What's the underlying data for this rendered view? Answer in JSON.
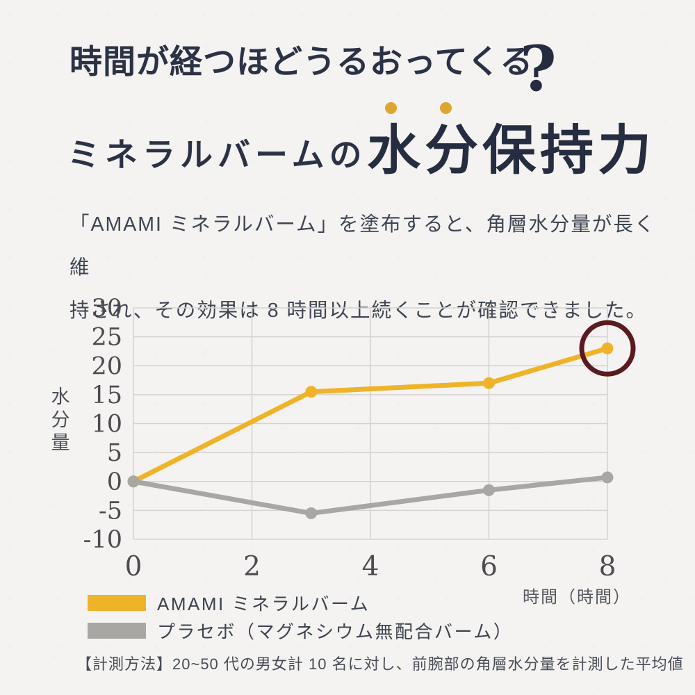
{
  "header": {
    "title": "時間が経つほどうるおってくる",
    "title_question_mark": "?",
    "subtitle_prefix": "ミネラルバームの",
    "subtitle_emphasis_chars": "水分",
    "subtitle_rest": "保持力",
    "subtitle_big": "水分保持力"
  },
  "description": {
    "line1": "「AMAMI ミネラルバーム」を塗布すると、角層水分量が長く維",
    "line2": "持され、その効果は 8 時間以上続くことが確認できました。"
  },
  "chart_data": {
    "type": "line",
    "x": [
      0,
      3,
      6,
      8
    ],
    "series": [
      {
        "name": "AMAMI ミネラルバーム",
        "color": "#efb32a",
        "values": [
          0,
          15.5,
          17,
          23
        ]
      },
      {
        "name": "プラセボ（マグネシウム無配合バーム）",
        "color": "#a9a7a4",
        "values": [
          0,
          -5.5,
          -1.5,
          0.7
        ]
      }
    ],
    "title": "ミネラルバームの水分保持力",
    "xlabel": "時間（時間）",
    "ylabel": "水分量",
    "x_ticks": [
      0,
      2,
      4,
      6,
      8
    ],
    "y_ticks": [
      30,
      25,
      20,
      15,
      10,
      5,
      0,
      -5,
      -10
    ],
    "xlim": [
      0,
      8
    ],
    "ylim": [
      -10,
      30
    ],
    "grid": true,
    "legend_position": "bottom-left",
    "annotation": {
      "shape": "circle",
      "x": 8,
      "y": 23,
      "color": "#5b1a1f"
    }
  },
  "footnote": "【計測方法】20~50 代の男女計 10 名に対し、前腕部の角層水分量を計測した平均値",
  "colors": {
    "background": "#f4f3f1",
    "title_navy": "#2b3245",
    "accent_gold": "#efb32a",
    "placebo_gray": "#a9a7a4",
    "annotation_maroon": "#5b1a1f",
    "gold_dot": "#dfa62f"
  }
}
